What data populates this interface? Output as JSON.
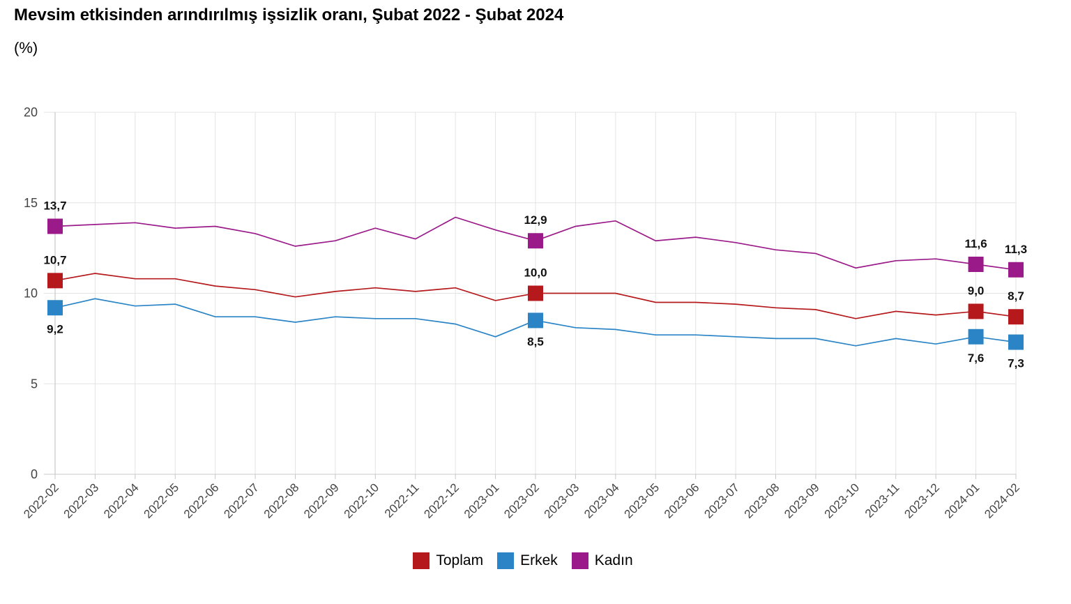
{
  "chart_data": {
    "type": "line",
    "title": "Mevsim etkisinden arındırılmış işsizlik oranı, Şubat 2022 - Şubat 2024",
    "subtitle": "(%)",
    "ylim": [
      0,
      20
    ],
    "yticks": [
      0,
      5,
      10,
      15,
      20
    ],
    "grid": true,
    "legend_position": "bottom-center",
    "categories": [
      "2022-02",
      "2022-03",
      "2022-04",
      "2022-05",
      "2022-06",
      "2022-07",
      "2022-08",
      "2022-09",
      "2022-10",
      "2022-11",
      "2022-12",
      "2023-01",
      "2023-02",
      "2023-03",
      "2023-04",
      "2023-05",
      "2023-06",
      "2023-07",
      "2023-08",
      "2023-09",
      "2023-10",
      "2023-11",
      "2023-12",
      "2024-01",
      "2024-02"
    ],
    "series": [
      {
        "name": "Toplam",
        "color": "#b5191c",
        "values": [
          10.7,
          11.1,
          10.8,
          10.8,
          10.4,
          10.2,
          9.8,
          10.1,
          10.3,
          10.1,
          10.3,
          9.6,
          10.0,
          10.0,
          10.0,
          9.5,
          9.5,
          9.4,
          9.2,
          9.1,
          8.6,
          9.0,
          8.8,
          9.0,
          8.7
        ],
        "labeled": [
          0,
          12,
          23,
          24
        ],
        "labels": [
          "10,7",
          "10,0",
          "9,0",
          "8,7"
        ],
        "label_side": "above"
      },
      {
        "name": "Erkek",
        "color": "#2a84c6",
        "values": [
          9.2,
          9.7,
          9.3,
          9.4,
          8.7,
          8.7,
          8.4,
          8.7,
          8.6,
          8.6,
          8.3,
          7.6,
          8.5,
          8.1,
          8.0,
          7.7,
          7.7,
          7.6,
          7.5,
          7.5,
          7.1,
          7.5,
          7.2,
          7.6,
          7.3
        ],
        "labeled": [
          0,
          12,
          23,
          24
        ],
        "labels": [
          "9,2",
          "8,5",
          "7,6",
          "7,3"
        ],
        "label_side": "below"
      },
      {
        "name": "Kadın",
        "color": "#9a1a8a",
        "values": [
          13.7,
          13.8,
          13.9,
          13.6,
          13.7,
          13.3,
          12.6,
          12.9,
          13.6,
          13.0,
          14.2,
          13.5,
          12.9,
          13.7,
          14.0,
          12.9,
          13.1,
          12.8,
          12.4,
          12.2,
          11.4,
          11.8,
          11.9,
          11.6,
          11.3
        ],
        "labeled": [
          0,
          12,
          23,
          24
        ],
        "labels": [
          "13,7",
          "12,9",
          "11,6",
          "11,3"
        ],
        "label_side": "above"
      }
    ]
  }
}
